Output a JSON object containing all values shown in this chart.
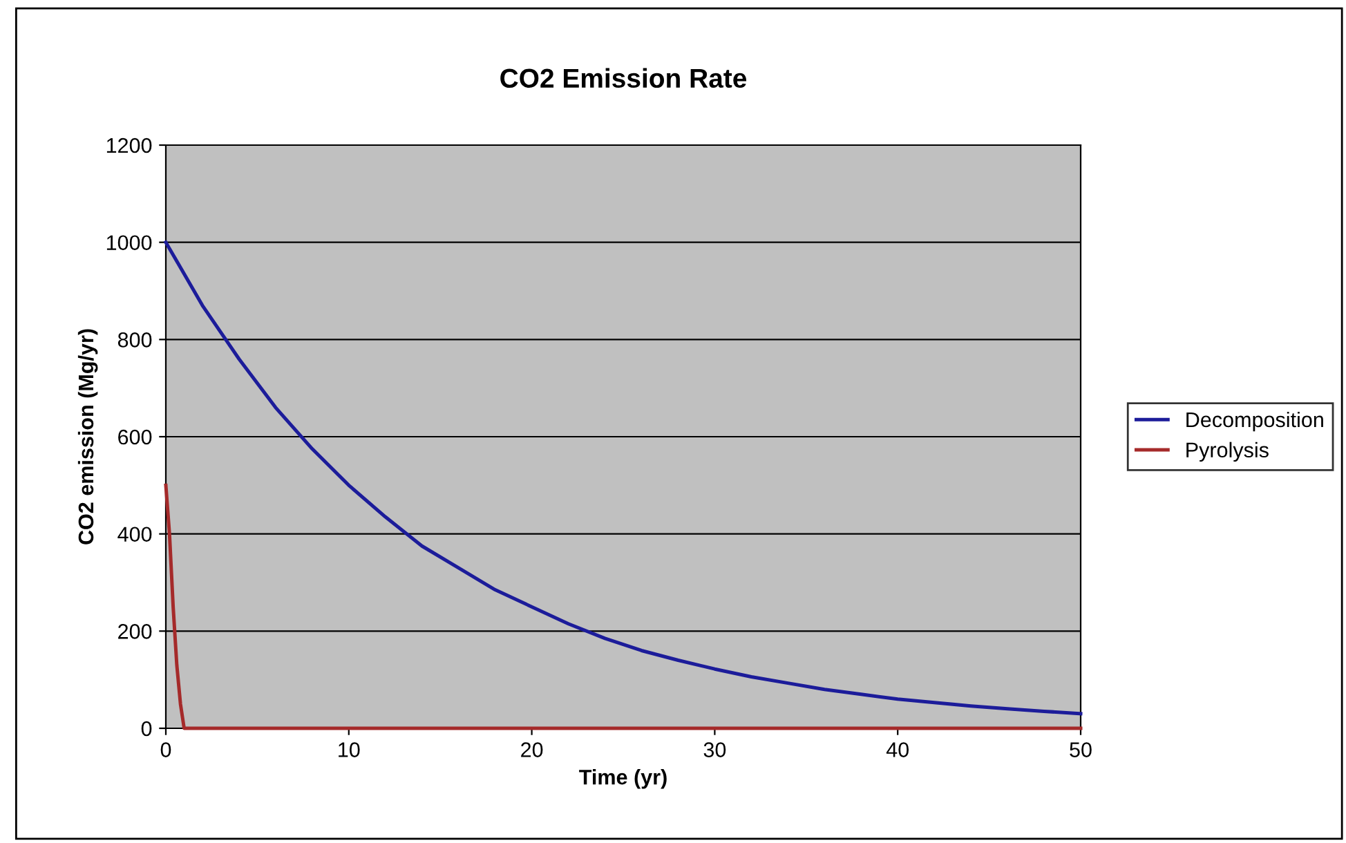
{
  "chart_data": {
    "type": "line",
    "title": "CO2 Emission Rate",
    "xlabel": "Time (yr)",
    "ylabel": "CO2 emission (Mg/yr)",
    "xlim": [
      0,
      50
    ],
    "ylim": [
      0,
      1200
    ],
    "xticks": [
      0,
      10,
      20,
      30,
      40,
      50
    ],
    "yticks": [
      0,
      200,
      400,
      600,
      800,
      1000,
      1200
    ],
    "grid": "y",
    "legend": "right",
    "marker": "none",
    "line_style": "solid",
    "series": [
      {
        "name": "Decomposition",
        "color": "#1c1c9a",
        "x": [
          0,
          2,
          4,
          6,
          8,
          10,
          12,
          14,
          16,
          18,
          20,
          22,
          24,
          26,
          28,
          30,
          32,
          34,
          36,
          38,
          40,
          42,
          44,
          46,
          48,
          50
        ],
        "values": [
          1000,
          870,
          760,
          660,
          575,
          500,
          435,
          375,
          330,
          285,
          250,
          215,
          185,
          160,
          140,
          122,
          106,
          93,
          80,
          70,
          60,
          53,
          46,
          40,
          35,
          30
        ]
      },
      {
        "name": "Pyrolysis",
        "color": "#a52a2a",
        "x": [
          0,
          0.2,
          0.4,
          0.6,
          0.8,
          1,
          10,
          20,
          30,
          40,
          50
        ],
        "values": [
          500,
          400,
          250,
          130,
          50,
          0,
          0,
          0,
          0,
          0,
          0
        ]
      }
    ]
  }
}
